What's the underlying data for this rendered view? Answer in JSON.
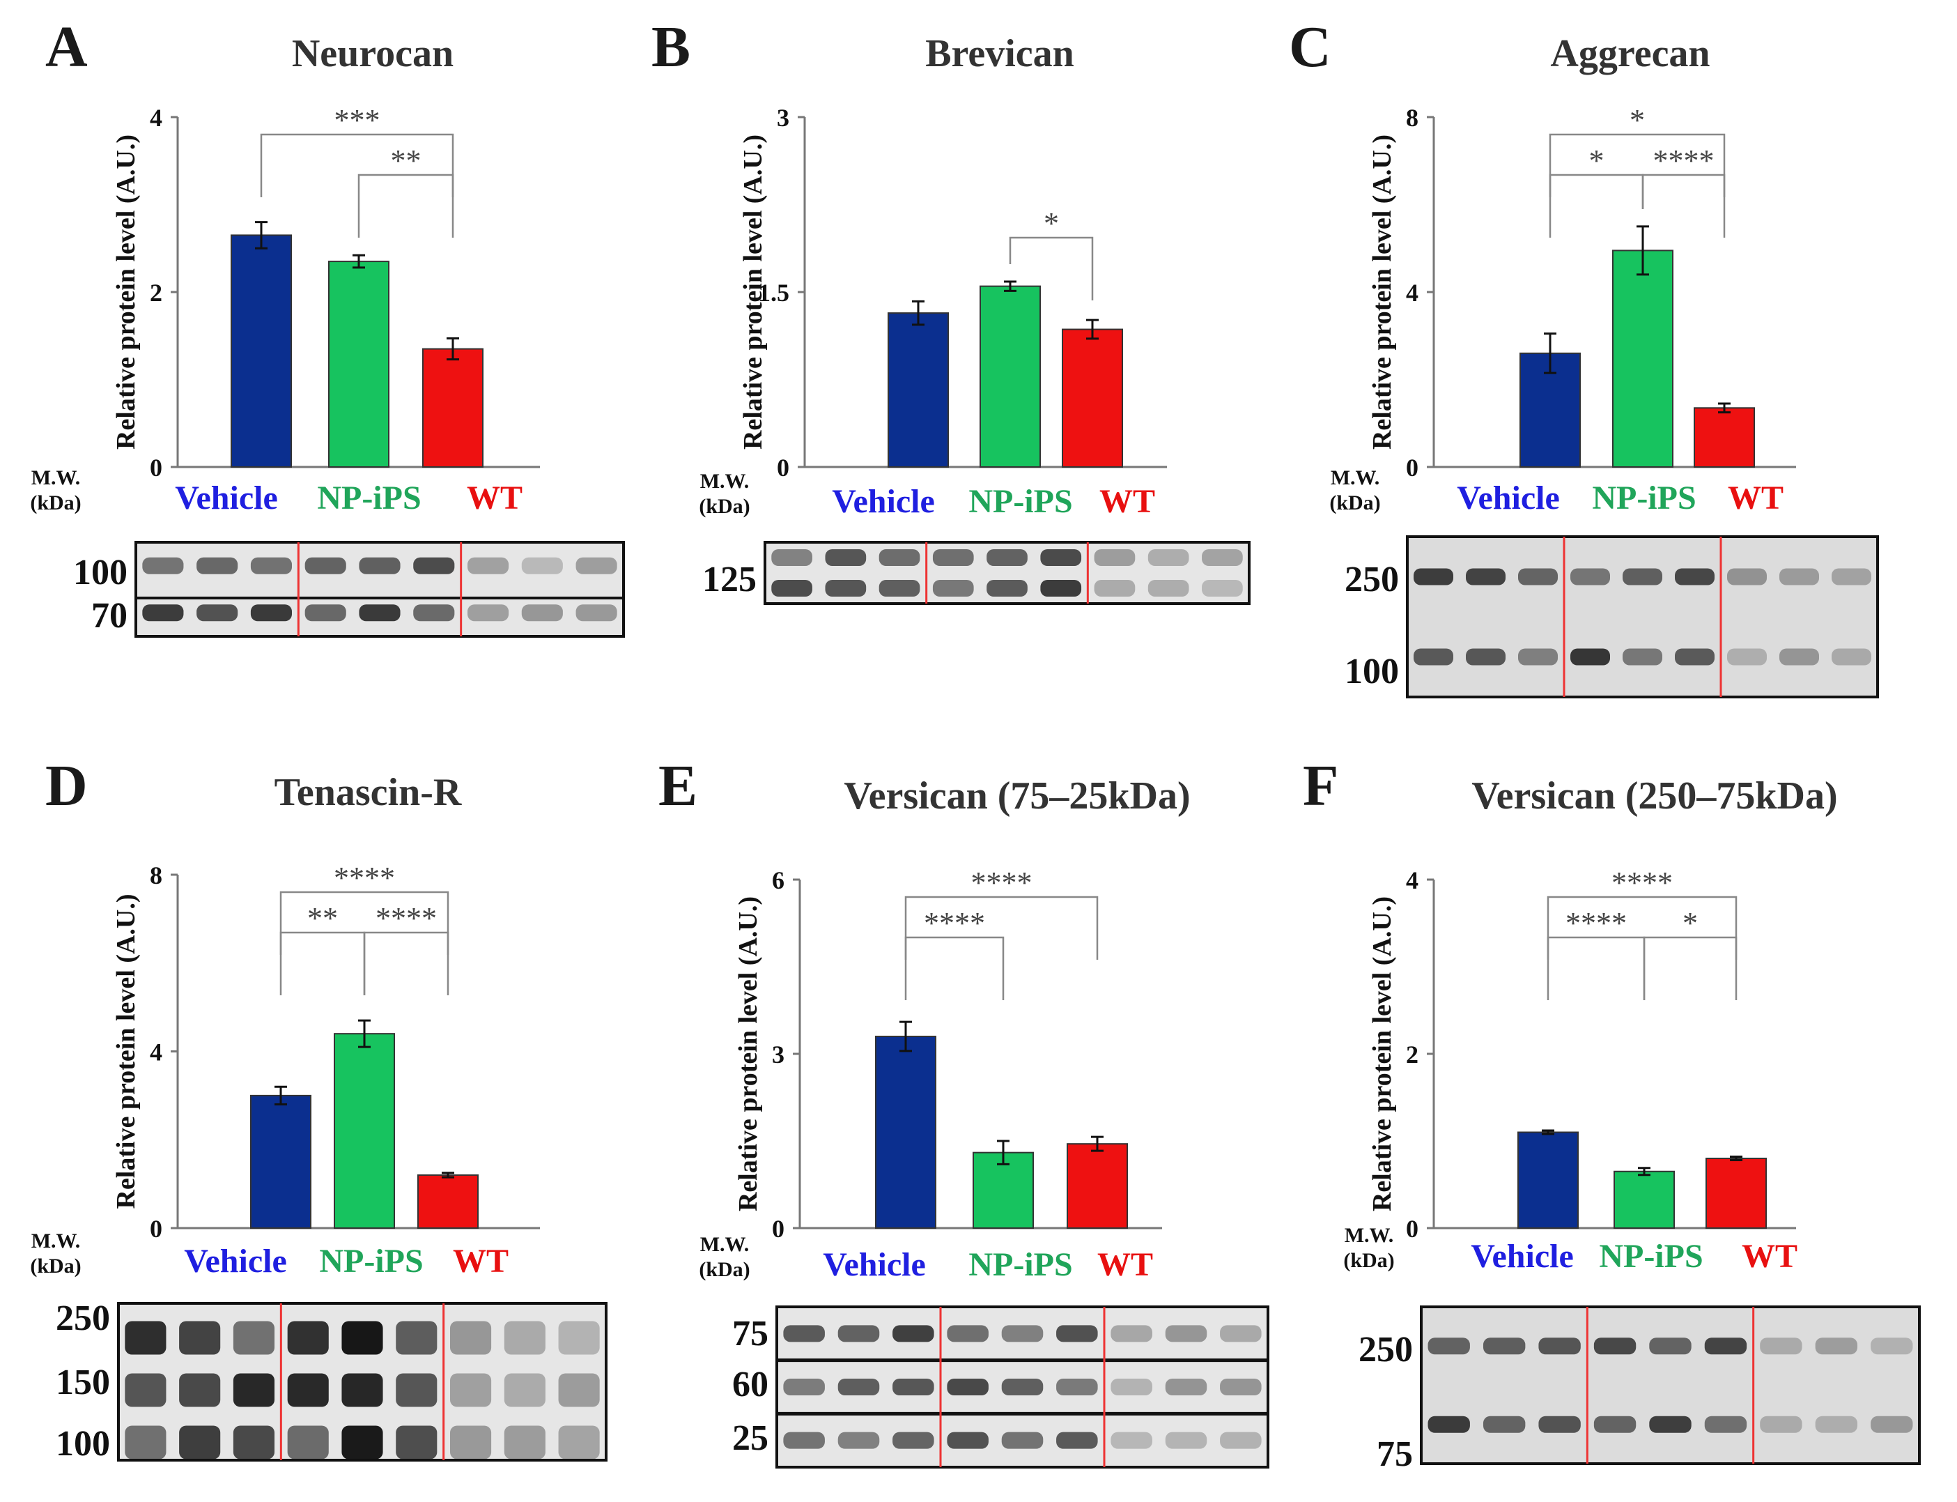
{
  "colors": {
    "Vehicle": "#0b2f8f",
    "NP-iPS": "#17c35f",
    "WT": "#ee1111",
    "vehicle_label": "#1f1fe0",
    "np_label": "#20a55a",
    "wt_label": "#e81010",
    "lane_divider": "#ee3333",
    "bracket": "#888888"
  },
  "common": {
    "ylabel": "Relative protein level (A.U.)",
    "mw_label": "M.W.",
    "kda_label": "(kDa)",
    "groups": [
      "Vehicle",
      "NP-iPS",
      "WT"
    ]
  },
  "chart_data": [
    {
      "panel": "A",
      "type": "bar",
      "title": "Neurocan",
      "categories": [
        "Vehicle",
        "NP-iPS",
        "WT"
      ],
      "values": [
        2.65,
        2.35,
        1.35
      ],
      "errors": [
        0.15,
        0.07,
        0.12
      ],
      "ylim": [
        0,
        4
      ],
      "yticks": [
        "0",
        "2",
        "4"
      ],
      "ylabel": "Relative protein level (A.U.)",
      "significance": [
        {
          "from": 0,
          "to": 2,
          "label": "***"
        },
        {
          "from": 1,
          "to": 2,
          "label": "**"
        }
      ],
      "blot": {
        "mw_labels": [
          "100",
          "70"
        ]
      }
    },
    {
      "panel": "B",
      "type": "bar",
      "title": "Brevican",
      "categories": [
        "Vehicle",
        "NP-iPS",
        "WT"
      ],
      "values": [
        1.32,
        1.55,
        1.18
      ],
      "errors": [
        0.1,
        0.04,
        0.08
      ],
      "ylim": [
        0,
        3
      ],
      "yticks": [
        "0",
        "1.5",
        "3"
      ],
      "ylabel": "Relative protein level (A.U.)",
      "significance": [
        {
          "from": 1,
          "to": 2,
          "label": "*"
        }
      ],
      "blot": {
        "mw_labels": [
          "125"
        ]
      }
    },
    {
      "panel": "C",
      "type": "bar",
      "title": "Aggrecan",
      "categories": [
        "Vehicle",
        "NP-iPS",
        "WT"
      ],
      "values": [
        2.6,
        4.95,
        1.35
      ],
      "errors": [
        0.45,
        0.55,
        0.1
      ],
      "ylim": [
        0,
        8
      ],
      "yticks": [
        "0",
        "4",
        "8"
      ],
      "ylabel": "Relative protein level (A.U.)",
      "significance": [
        {
          "from": 0,
          "to": 2,
          "label": "*"
        },
        {
          "from": 0,
          "to": 1,
          "label": "*"
        },
        {
          "from": 1,
          "to": 2,
          "label": "****"
        }
      ],
      "blot": {
        "mw_labels": [
          "250",
          "100"
        ]
      }
    },
    {
      "panel": "D",
      "type": "bar",
      "title": "Tenascin-R",
      "categories": [
        "Vehicle",
        "NP-iPS",
        "WT"
      ],
      "values": [
        3.0,
        4.4,
        1.2
      ],
      "errors": [
        0.2,
        0.3,
        0.05
      ],
      "ylim": [
        0,
        8
      ],
      "yticks": [
        "0",
        "4",
        "8"
      ],
      "ylabel": "Relative protein level (A.U.)",
      "significance": [
        {
          "from": 0,
          "to": 2,
          "label": "****"
        },
        {
          "from": 0,
          "to": 1,
          "label": "**"
        },
        {
          "from": 1,
          "to": 2,
          "label": "****"
        }
      ],
      "blot": {
        "mw_labels": [
          "250",
          "150",
          "100"
        ]
      }
    },
    {
      "panel": "E",
      "type": "bar",
      "title": "Versican (75–25kDa)",
      "categories": [
        "Vehicle",
        "NP-iPS",
        "WT"
      ],
      "values": [
        3.3,
        1.3,
        1.45
      ],
      "errors": [
        0.25,
        0.2,
        0.12
      ],
      "ylim": [
        0,
        6
      ],
      "yticks": [
        "0",
        "3",
        "6"
      ],
      "ylabel": "Relative protein level (A.U.)",
      "significance": [
        {
          "from": 0,
          "to": 2,
          "label": "****"
        },
        {
          "from": 0,
          "to": 1,
          "label": "****"
        }
      ],
      "blot": {
        "mw_labels": [
          "75",
          "60",
          "25"
        ]
      }
    },
    {
      "panel": "F",
      "type": "bar",
      "title": "Versican (250–75kDa)",
      "categories": [
        "Vehicle",
        "NP-iPS",
        "WT"
      ],
      "values": [
        1.1,
        0.65,
        0.8
      ],
      "errors": [
        0.02,
        0.04,
        0.02
      ],
      "ylim": [
        0,
        4
      ],
      "yticks": [
        "0",
        "2",
        "4"
      ],
      "ylabel": "Relative protein level (A.U.)",
      "significance": [
        {
          "from": 0,
          "to": 2,
          "label": "****"
        },
        {
          "from": 0,
          "to": 1,
          "label": "****"
        },
        {
          "from": 1,
          "to": 2,
          "label": "*"
        }
      ],
      "blot": {
        "mw_labels": [
          "250",
          "75"
        ]
      }
    }
  ]
}
